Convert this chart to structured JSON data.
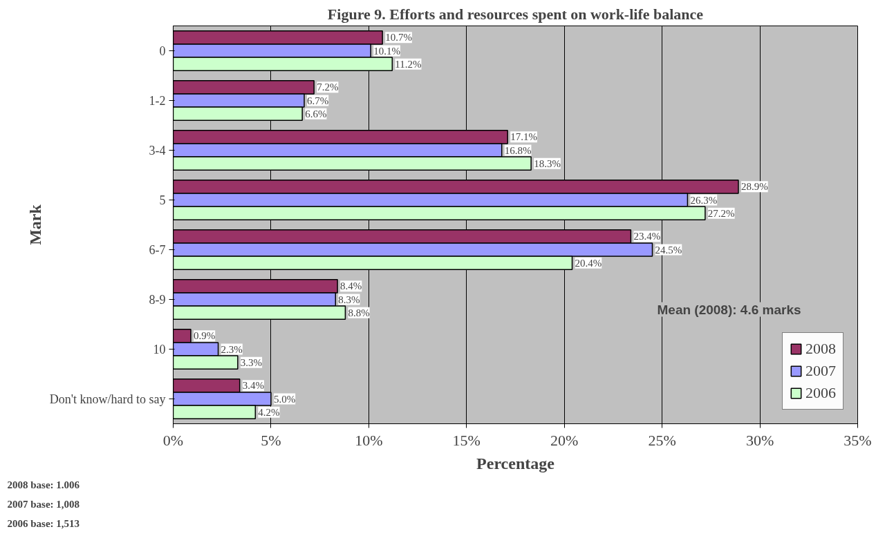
{
  "chart_data": {
    "type": "bar",
    "orientation": "horizontal",
    "title": "Figure 9. Efforts and resources spent on work-life balance",
    "xlabel": "Percentage",
    "ylabel": "Mark",
    "categories": [
      "0",
      "1-2",
      "3-4",
      "5",
      "6-7",
      "8-9",
      "10",
      "Don't know/hard to say"
    ],
    "series": [
      {
        "name": "2008",
        "color": "#993366",
        "values": [
          10.7,
          7.2,
          17.1,
          28.9,
          23.4,
          8.4,
          0.9,
          3.4
        ],
        "value_labels": [
          "10.7%",
          "7.2%",
          "17.1%",
          "28.9%",
          "23.4%",
          "8.4%",
          "0.9%",
          "3.4%"
        ]
      },
      {
        "name": "2007",
        "color": "#9999ff",
        "values": [
          10.1,
          6.7,
          16.8,
          26.3,
          24.5,
          8.3,
          2.3,
          5.0
        ],
        "value_labels": [
          "10.1%",
          "6.7%",
          "16.8%",
          "26.3%",
          "24.5%",
          "8.3%",
          "2.3%",
          "5.0%"
        ]
      },
      {
        "name": "2006",
        "color": "#ccffcc",
        "values": [
          11.2,
          6.6,
          18.3,
          27.2,
          20.4,
          8.8,
          3.3,
          4.2
        ],
        "value_labels": [
          "11.2%",
          "6.6%",
          "18.3%",
          "27.2%",
          "20.4%",
          "8.8%",
          "3.3%",
          "4.2%"
        ]
      }
    ],
    "xlim": [
      0,
      35
    ],
    "xticks": [
      {
        "value": 0,
        "label": "0%"
      },
      {
        "value": 5,
        "label": "5%"
      },
      {
        "value": 10,
        "label": "10%"
      },
      {
        "value": 15,
        "label": "15%"
      },
      {
        "value": 20,
        "label": "20%"
      },
      {
        "value": 25,
        "label": "25%"
      },
      {
        "value": 30,
        "label": "30%"
      },
      {
        "value": 35,
        "label": "35%"
      }
    ],
    "grid": "x",
    "legend": "bottom right",
    "annotations": [
      "Mean (2008): 4.6 marks",
      "2008 base: 1.006",
      "2007 base: 1,008",
      "2006 base: 1,513"
    ]
  }
}
